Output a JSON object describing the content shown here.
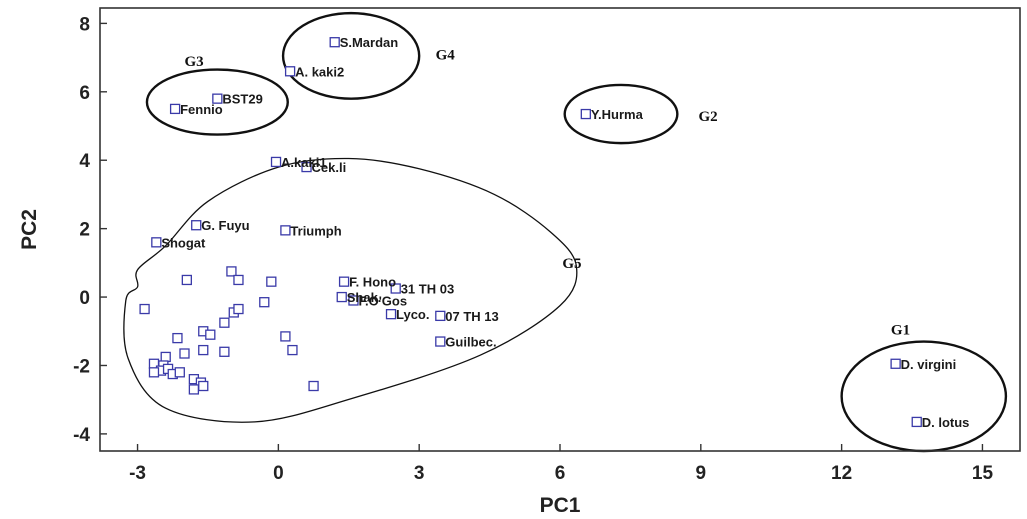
{
  "chart_data": {
    "type": "scatter",
    "title": "",
    "xlabel": "PC1",
    "ylabel": "PC2",
    "xlim": [
      -3.8,
      15.8
    ],
    "ylim": [
      -4.5,
      8.45
    ],
    "xticks": [
      -3,
      0,
      3,
      6,
      9,
      12,
      15
    ],
    "yticks": [
      -4,
      -2,
      0,
      2,
      4,
      6,
      8
    ],
    "grid": false,
    "legend": "none",
    "marker_color": "#3a3aa8",
    "labeled_points": [
      {
        "label": "S.Mardan",
        "x": 1.2,
        "y": 7.45
      },
      {
        "label": "A. kaki2",
        "x": 0.25,
        "y": 6.6
      },
      {
        "label": "BST29",
        "x": -1.3,
        "y": 5.8
      },
      {
        "label": "Fennio",
        "x": -2.2,
        "y": 5.5
      },
      {
        "label": "Y.Hurma",
        "x": 6.55,
        "y": 5.35
      },
      {
        "label": "A.kaki1",
        "x": -0.05,
        "y": 3.95
      },
      {
        "label": "Cek.li",
        "x": 0.6,
        "y": 3.8
      },
      {
        "label": "G. Fuyu",
        "x": -1.75,
        "y": 2.1
      },
      {
        "label": "Triumph",
        "x": 0.15,
        "y": 1.95
      },
      {
        "label": "Shogat",
        "x": -2.6,
        "y": 1.6
      },
      {
        "label": "F. Hono",
        "x": 1.4,
        "y": 0.45
      },
      {
        "label": "31 TH 03",
        "x": 2.5,
        "y": 0.25
      },
      {
        "label": "Shak.",
        "x": 1.35,
        "y": 0.0
      },
      {
        "label": "F.O'Gos",
        "x": 1.6,
        "y": -0.1
      },
      {
        "label": "07 TH 13",
        "x": 3.45,
        "y": -0.55
      },
      {
        "label": "Lyco.",
        "x": 2.4,
        "y": -0.5
      },
      {
        "label": "Guilbec.",
        "x": 3.45,
        "y": -1.3
      },
      {
        "label": "D. virgini",
        "x": 13.15,
        "y": -1.95
      },
      {
        "label": "D. lotus",
        "x": 13.6,
        "y": -3.65
      }
    ],
    "unlabeled_points": [
      [
        -2.85,
        -0.35
      ],
      [
        -1.95,
        0.5
      ],
      [
        -1.0,
        0.75
      ],
      [
        -0.85,
        0.5
      ],
      [
        -0.15,
        0.45
      ],
      [
        -0.95,
        -0.45
      ],
      [
        -0.85,
        -0.35
      ],
      [
        -0.3,
        -0.15
      ],
      [
        -1.15,
        -0.75
      ],
      [
        -2.15,
        -1.2
      ],
      [
        -1.6,
        -1.0
      ],
      [
        -1.45,
        -1.1
      ],
      [
        -1.15,
        -1.6
      ],
      [
        -1.6,
        -1.55
      ],
      [
        -2.0,
        -1.65
      ],
      [
        0.15,
        -1.15
      ],
      [
        0.3,
        -1.55
      ],
      [
        -2.65,
        -1.95
      ],
      [
        -2.4,
        -1.75
      ],
      [
        -2.45,
        -2.0
      ],
      [
        -2.5,
        -2.15
      ],
      [
        -2.35,
        -2.1
      ],
      [
        -2.25,
        -2.25
      ],
      [
        -2.1,
        -2.2
      ],
      [
        -2.65,
        -2.2
      ],
      [
        -1.8,
        -2.4
      ],
      [
        -1.65,
        -2.5
      ],
      [
        -1.8,
        -2.7
      ],
      [
        -1.6,
        -2.6
      ],
      [
        0.75,
        -2.6
      ]
    ],
    "groups": [
      {
        "name": "G1",
        "cx": 13.75,
        "cy": -2.9,
        "rx": 1.75,
        "ry": 1.6,
        "lx": 13.05,
        "ly": -1.1
      },
      {
        "name": "G2",
        "cx": 7.3,
        "cy": 5.35,
        "rx": 1.2,
        "ry": 0.85,
        "lx": 8.95,
        "ly": 5.15
      },
      {
        "name": "G3",
        "cx": -1.3,
        "cy": 5.7,
        "rx": 1.5,
        "ry": 0.95,
        "lx": -2.0,
        "ly": 6.75
      },
      {
        "name": "G4",
        "cx": 1.55,
        "cy": 7.05,
        "rx": 1.45,
        "ry": 1.25,
        "lx": 3.35,
        "ly": 6.95
      }
    ],
    "g5_label": {
      "name": "G5",
      "x": 6.05,
      "y": 0.85
    },
    "g5_outline": [
      [
        -2.4,
        1.5
      ],
      [
        -1.5,
        2.8
      ],
      [
        0.0,
        3.8
      ],
      [
        1.5,
        4.05
      ],
      [
        3.0,
        3.75
      ],
      [
        4.6,
        3.0
      ],
      [
        5.8,
        1.9
      ],
      [
        6.35,
        0.9
      ],
      [
        6.0,
        -0.25
      ],
      [
        4.3,
        -1.7
      ],
      [
        1.6,
        -2.95
      ],
      [
        -0.5,
        -3.65
      ],
      [
        -2.4,
        -3.25
      ],
      [
        -3.2,
        -1.8
      ],
      [
        -3.25,
        -0.1
      ],
      [
        -3.0,
        0.3
      ],
      [
        -3.0,
        0.8
      ]
    ]
  }
}
